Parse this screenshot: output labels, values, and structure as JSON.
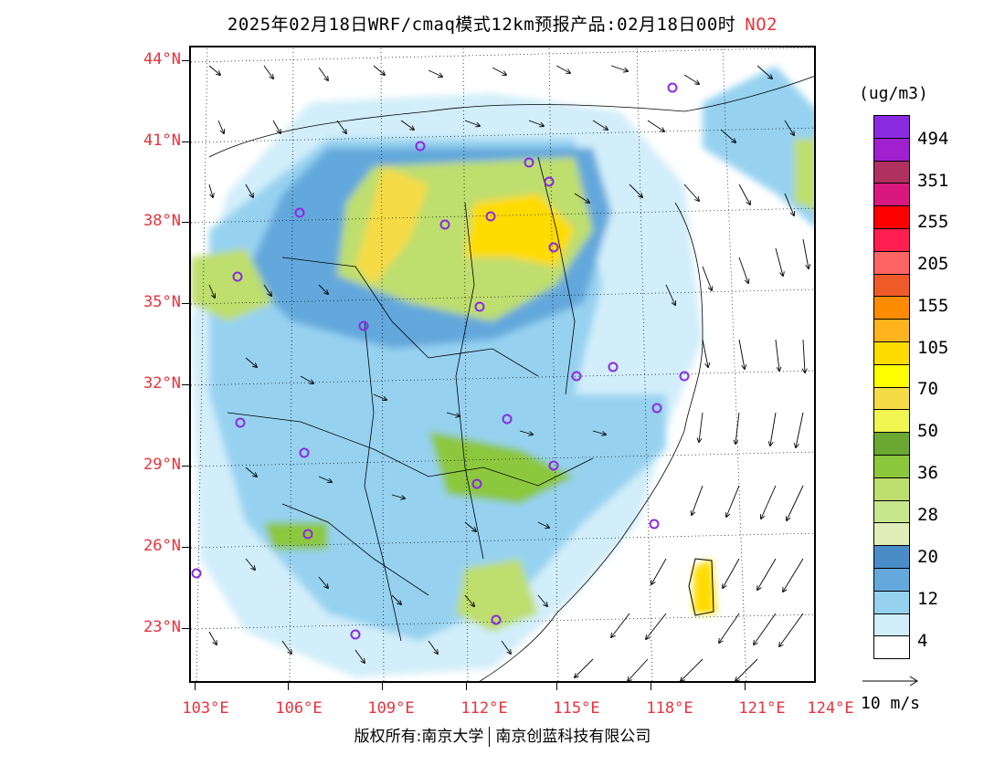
{
  "title": {
    "text": "2025年02月18日WRF/cmaq模式12km预报产品:02月18日00时",
    "species": "NO2"
  },
  "map": {
    "lat_labels": [
      "44°N",
      "41°N",
      "38°N",
      "35°N",
      "32°N",
      "29°N",
      "26°N",
      "23°N"
    ],
    "lon_labels": [
      "103°E",
      "106°E",
      "109°E",
      "112°E",
      "115°E",
      "118°E",
      "121°E",
      "124°E"
    ]
  },
  "legend": {
    "unit": "(ug/m3)",
    "labels": [
      "494",
      "351",
      "255",
      "205",
      "155",
      "105",
      "70",
      "50",
      "36",
      "28",
      "20",
      "12",
      "4"
    ],
    "colors": [
      "#8a2be2",
      "#a020d0",
      "#b03060",
      "#d8187e",
      "#ff0000",
      "#ff1e50",
      "#ff6464",
      "#f05a28",
      "#ff8c00",
      "#ffb41e",
      "#ffdc00",
      "#ffff00",
      "#f5dc46",
      "#f0f550",
      "#6aa832",
      "#8cc83c",
      "#bede6e",
      "#c8e68c",
      "#e1edb9",
      "#4a8cc8",
      "#64a8dc",
      "#96d2f0",
      "#d2eefa",
      "#ffffff"
    ],
    "wind_scale_label": "10 m/s"
  },
  "footer": {
    "left": "版权所有:南京大学",
    "right": "南京创蓝科技有限公司"
  }
}
